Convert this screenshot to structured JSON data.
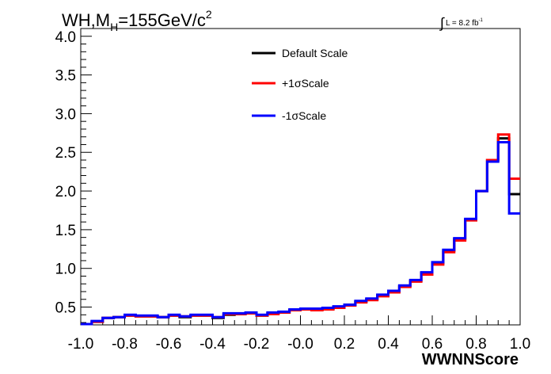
{
  "title": {
    "prefix": "WH,M",
    "sub": "H",
    "rest": "=155GeV/c",
    "sup": "2"
  },
  "lumi": {
    "integral": "∫",
    "text": "L = 8.2 fb",
    "sup": "-1"
  },
  "chart_data": {
    "type": "line",
    "step": true,
    "xlabel": "WWNNScore",
    "ylabel": "",
    "xlim": [
      -1.0,
      1.0
    ],
    "ylim": [
      0.27,
      4.1
    ],
    "xticks": [
      "-1.0",
      "-0.8",
      "-0.6",
      "-0.4",
      "-0.2",
      "-0.0",
      "0.2",
      "0.4",
      "0.6",
      "0.8",
      "1.0"
    ],
    "yticks": [
      "0.5",
      "1.0",
      "1.5",
      "2.0",
      "2.5",
      "3.0",
      "3.5",
      "4.0"
    ],
    "legend_placement": "top-center",
    "bin_edges": [
      -1.0,
      -0.95,
      -0.9,
      -0.85,
      -0.8,
      -0.75,
      -0.7,
      -0.65,
      -0.6,
      -0.55,
      -0.5,
      -0.45,
      -0.4,
      -0.35,
      -0.3,
      -0.25,
      -0.2,
      -0.15,
      -0.1,
      -0.05,
      0.0,
      0.05,
      0.1,
      0.15,
      0.2,
      0.25,
      0.3,
      0.35,
      0.4,
      0.45,
      0.5,
      0.55,
      0.6,
      0.65,
      0.7,
      0.75,
      0.8,
      0.85,
      0.9,
      0.95,
      1.0
    ],
    "series": [
      {
        "name": "Default Scale",
        "color": "#000000",
        "values": [
          0.28,
          0.31,
          0.36,
          0.37,
          0.39,
          0.38,
          0.38,
          0.37,
          0.39,
          0.37,
          0.39,
          0.39,
          0.36,
          0.4,
          0.41,
          0.42,
          0.39,
          0.42,
          0.43,
          0.46,
          0.47,
          0.47,
          0.48,
          0.5,
          0.53,
          0.57,
          0.6,
          0.65,
          0.7,
          0.77,
          0.84,
          0.94,
          1.07,
          1.23,
          1.38,
          1.63,
          2.0,
          2.4,
          2.68,
          1.96
        ]
      },
      {
        "name": "+1σScale",
        "color": "#ff0000",
        "values": [
          0.28,
          0.31,
          0.36,
          0.37,
          0.39,
          0.38,
          0.38,
          0.37,
          0.39,
          0.38,
          0.39,
          0.39,
          0.37,
          0.41,
          0.41,
          0.42,
          0.39,
          0.41,
          0.43,
          0.46,
          0.47,
          0.46,
          0.47,
          0.49,
          0.52,
          0.56,
          0.59,
          0.64,
          0.69,
          0.76,
          0.83,
          0.92,
          1.05,
          1.21,
          1.36,
          1.62,
          2.0,
          2.4,
          2.73,
          2.16
        ]
      },
      {
        "name": "-1σScale",
        "color": "#0000ff",
        "values": [
          0.28,
          0.32,
          0.36,
          0.37,
          0.4,
          0.39,
          0.39,
          0.37,
          0.4,
          0.38,
          0.4,
          0.4,
          0.37,
          0.42,
          0.42,
          0.43,
          0.4,
          0.43,
          0.44,
          0.47,
          0.48,
          0.48,
          0.49,
          0.51,
          0.53,
          0.58,
          0.61,
          0.66,
          0.71,
          0.78,
          0.85,
          0.95,
          1.08,
          1.24,
          1.39,
          1.64,
          2.0,
          2.38,
          2.63,
          1.71
        ]
      }
    ]
  }
}
